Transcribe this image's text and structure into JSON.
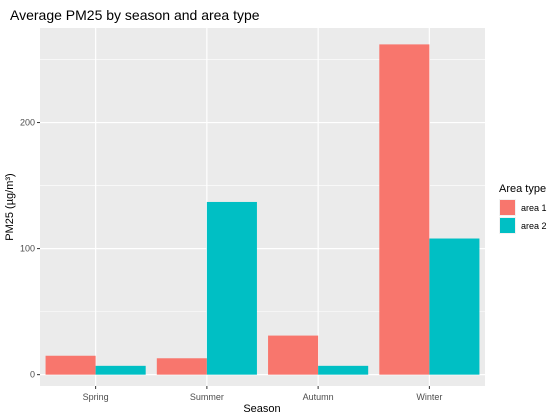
{
  "chart_data": {
    "type": "bar",
    "title": "Average PM25 by season and area type",
    "xlabel": "Season",
    "ylabel": "PM25 (µg/m³)",
    "categories": [
      "Spring",
      "Summer",
      "Autumn",
      "Winter"
    ],
    "series": [
      {
        "name": "area 1",
        "color": "#F8766D",
        "values": [
          15,
          13,
          31,
          262
        ]
      },
      {
        "name": "area 2",
        "color": "#00BFC4",
        "values": [
          7,
          137,
          7,
          108
        ]
      }
    ],
    "ylim": [
      -9,
      275
    ],
    "yticks": [
      0,
      100,
      200
    ],
    "legend": {
      "title": "Area type",
      "placement": "right"
    },
    "grid": true,
    "panel_background": "#EBEBEB",
    "grid_color": "#FFFFFF"
  }
}
